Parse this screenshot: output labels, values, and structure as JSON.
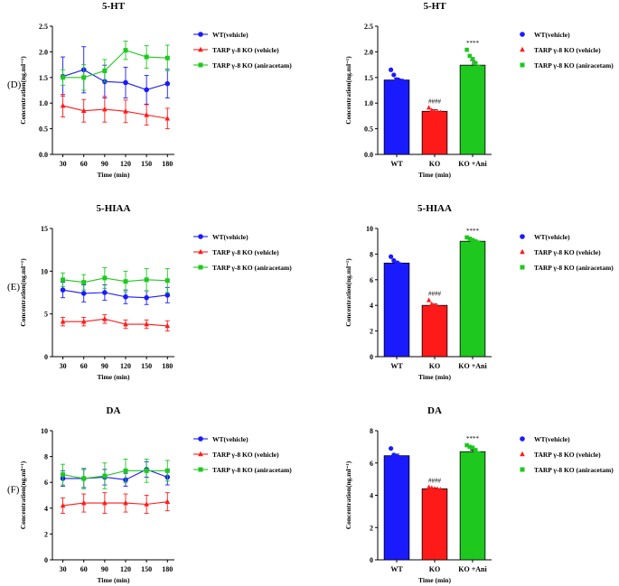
{
  "colors": {
    "wt": "#1a1aff",
    "ko": "#ff1a1a",
    "ani": "#1ec81e"
  },
  "legend": [
    "WT(vehicle)",
    "TARP γ-8 KO (vehicle)",
    "TARP γ-8 KO (aniracetam)"
  ],
  "chart_data": [
    {
      "id": "5ht_time",
      "type": "line",
      "panel_label": "(D)",
      "title": "5-HT",
      "xlabel": "Time (min)",
      "ylabel": "Concentration(ng.ml⁻¹)",
      "x": [
        30,
        60,
        90,
        120,
        150,
        180
      ],
      "xlim": [
        15,
        190
      ],
      "ylim": [
        0,
        2.5
      ],
      "yticks": [
        0,
        0.5,
        1.0,
        1.5,
        2.0,
        2.5
      ],
      "ytick_labels": [
        "0.0",
        "0.5",
        "1.0",
        "1.5",
        "2.0",
        "2.5"
      ],
      "series": [
        {
          "name": "WT(vehicle)",
          "values": [
            1.52,
            1.65,
            1.42,
            1.4,
            1.26,
            1.38
          ],
          "err": [
            0.38,
            0.45,
            0.32,
            0.3,
            0.28,
            0.28
          ]
        },
        {
          "name": "TARP γ-8 KO (vehicle)",
          "values": [
            0.95,
            0.85,
            0.88,
            0.84,
            0.77,
            0.7
          ],
          "err": [
            0.22,
            0.22,
            0.25,
            0.22,
            0.2,
            0.2
          ]
        },
        {
          "name": "TARP γ-8 KO (aniracetam)",
          "values": [
            1.5,
            1.5,
            1.63,
            2.03,
            1.9,
            1.88
          ],
          "err": [
            0.15,
            0.25,
            0.22,
            0.18,
            0.22,
            0.25
          ]
        }
      ]
    },
    {
      "id": "5ht_bar",
      "type": "bar",
      "title": "5-HT",
      "xlabel": "Time (min)",
      "ylabel": "Concentration(ng.ml⁻¹)",
      "categories": [
        "WT",
        "KO",
        "KO +Ani"
      ],
      "values": [
        1.45,
        0.84,
        1.74
      ],
      "err": [
        0.04,
        0.03,
        0.09
      ],
      "points": [
        [
          1.65,
          1.55,
          1.46,
          1.44,
          1.43
        ],
        [
          0.91,
          0.86,
          0.84,
          0.83,
          0.82
        ],
        [
          2.04,
          1.92,
          1.86,
          1.78,
          1.7
        ]
      ],
      "annotations": [
        "",
        "####",
        "****"
      ],
      "ylim": [
        0,
        2.5
      ],
      "yticks": [
        0,
        0.5,
        1.0,
        1.5,
        2.0,
        2.5
      ],
      "ytick_labels": [
        "0.0",
        "0.5",
        "1.0",
        "1.5",
        "2.0",
        "2.5"
      ]
    },
    {
      "id": "5hiaa_time",
      "type": "line",
      "panel_label": "(E)",
      "title": "5-HIAA",
      "xlabel": "Time (min)",
      "ylabel": "Concentration(ng.ml⁻¹)",
      "x": [
        30,
        60,
        90,
        120,
        150,
        180
      ],
      "xlim": [
        15,
        190
      ],
      "ylim": [
        0,
        15
      ],
      "yticks": [
        0,
        5,
        10,
        15
      ],
      "ytick_labels": [
        "0",
        "5",
        "10",
        "15"
      ],
      "series": [
        {
          "name": "WT(vehicle)",
          "values": [
            7.8,
            7.4,
            7.5,
            7.0,
            6.9,
            7.2
          ],
          "err": [
            0.9,
            1.0,
            0.9,
            0.8,
            0.8,
            0.9
          ]
        },
        {
          "name": "TARP γ-8 KO (vehicle)",
          "values": [
            4.1,
            4.1,
            4.4,
            3.8,
            3.8,
            3.6
          ],
          "err": [
            0.5,
            0.5,
            0.5,
            0.5,
            0.5,
            0.6
          ]
        },
        {
          "name": "TARP γ-8 KO (aniracetam)",
          "values": [
            9.0,
            8.7,
            9.2,
            8.8,
            9.0,
            8.9
          ],
          "err": [
            0.8,
            0.9,
            1.2,
            1.2,
            1.3,
            1.4
          ]
        }
      ]
    },
    {
      "id": "5hiaa_bar",
      "type": "bar",
      "title": "5-HIAA",
      "xlabel": "Time (min)",
      "ylabel": "Concentration(ng.ml⁻¹)",
      "categories": [
        "WT",
        "KO",
        "KO +Ani"
      ],
      "values": [
        7.3,
        4.0,
        9.0
      ],
      "err": [
        0.15,
        0.1,
        0.12
      ],
      "points": [
        [
          7.8,
          7.5,
          7.3,
          7.2,
          7.1
        ],
        [
          4.4,
          4.1,
          4.0,
          3.9,
          3.8
        ],
        [
          9.3,
          9.2,
          9.1,
          9.0,
          8.9
        ]
      ],
      "annotations": [
        "",
        "####",
        "****"
      ],
      "ylim": [
        0,
        10
      ],
      "yticks": [
        0,
        2,
        4,
        6,
        8,
        10
      ],
      "ytick_labels": [
        "0",
        "2",
        "4",
        "6",
        "8",
        "10"
      ]
    },
    {
      "id": "da_time",
      "type": "line",
      "panel_label": "(F)",
      "title": "DA",
      "xlabel": "Time (min)",
      "ylabel": "Concentration(ng.ml⁻¹)",
      "x": [
        30,
        60,
        90,
        120,
        150,
        180
      ],
      "xlim": [
        15,
        190
      ],
      "ylim": [
        0,
        10
      ],
      "yticks": [
        0,
        2,
        4,
        6,
        8,
        10
      ],
      "ytick_labels": [
        "0",
        "2",
        "4",
        "6",
        "8",
        "10"
      ],
      "series": [
        {
          "name": "WT(vehicle)",
          "values": [
            6.3,
            6.3,
            6.4,
            6.2,
            7.0,
            6.4
          ],
          "err": [
            0.6,
            0.7,
            0.6,
            0.5,
            0.6,
            0.6
          ]
        },
        {
          "name": "TARP γ-8 KO (vehicle)",
          "values": [
            4.2,
            4.4,
            4.4,
            4.4,
            4.3,
            4.5
          ],
          "err": [
            0.6,
            0.7,
            0.8,
            0.7,
            0.7,
            0.7
          ]
        },
        {
          "name": "TARP γ-8 KO (aniracetam)",
          "values": [
            6.6,
            6.3,
            6.5,
            6.9,
            6.9,
            6.9
          ],
          "err": [
            0.8,
            0.8,
            1.0,
            0.9,
            0.9,
            0.8
          ]
        }
      ]
    },
    {
      "id": "da_bar",
      "type": "bar",
      "title": "DA",
      "xlabel": "Time (min)",
      "ylabel": "Concentration(ng.ml⁻¹)",
      "categories": [
        "WT",
        "KO",
        "KO +Ani"
      ],
      "values": [
        6.45,
        4.4,
        6.7
      ],
      "err": [
        0.1,
        0.05,
        0.1
      ],
      "points": [
        [
          6.9,
          6.5,
          6.4,
          6.35,
          6.3
        ],
        [
          4.5,
          4.45,
          4.4,
          4.38,
          4.35
        ],
        [
          7.1,
          7.0,
          6.95,
          6.8,
          6.6
        ]
      ],
      "annotations": [
        "",
        "####",
        "****"
      ],
      "ylim": [
        0,
        8
      ],
      "yticks": [
        0,
        2,
        4,
        6,
        8
      ],
      "ytick_labels": [
        "0",
        "2",
        "4",
        "6",
        "8"
      ]
    }
  ]
}
